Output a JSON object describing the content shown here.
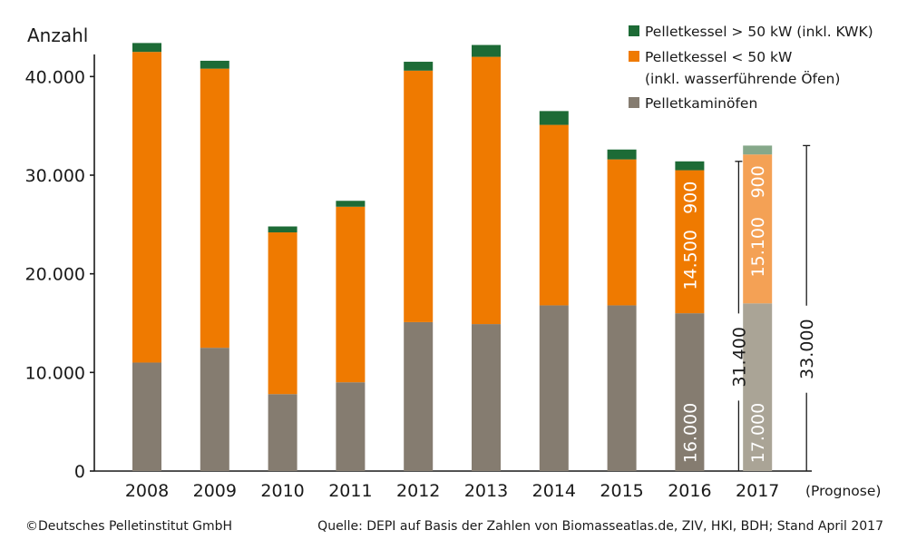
{
  "chart_data": {
    "type": "bar",
    "stacked": true,
    "ylabel": "Anzahl",
    "ylim": [
      0,
      45000
    ],
    "yticks": [
      0,
      10000,
      20000,
      30000,
      40000
    ],
    "ytick_labels": [
      "0",
      "10.000",
      "20.000",
      "30.000",
      "40.000"
    ],
    "grid": false,
    "legend_position": "top-right",
    "categories": [
      "2008",
      "2009",
      "2010",
      "2011",
      "2012",
      "2013",
      "2014",
      "2015",
      "2016",
      "2017"
    ],
    "category_note": "(Prognose)",
    "series": [
      {
        "name": "Pelletkaminöfen",
        "color": "#857c70",
        "forecast_color": "#aaa496",
        "values": [
          11000,
          12500,
          7800,
          9000,
          15100,
          14900,
          16800,
          16800,
          16000,
          17000
        ]
      },
      {
        "name": "Pelletkessel < 50 kW",
        "name_line2": "(inkl. wasserführende Öfen)",
        "color": "#ef7a00",
        "forecast_color": "#f4a155",
        "values": [
          31500,
          28300,
          16400,
          17800,
          25500,
          27100,
          18300,
          14800,
          14500,
          15100
        ]
      },
      {
        "name": "Pelletkessel > 50 kW (inkl. KWK)",
        "color": "#1d6b36",
        "forecast_color": "#86a88a",
        "values": [
          900,
          800,
          600,
          600,
          900,
          1200,
          1400,
          1000,
          900,
          900
        ]
      }
    ],
    "bar_value_labels": {
      "2016": [
        "16.000",
        "14.500",
        "900"
      ],
      "2017": [
        "17.000",
        "15.100",
        "900"
      ]
    },
    "total_annotations": [
      {
        "category": "2016",
        "value": 31400,
        "label": "31.400"
      },
      {
        "category": "2017",
        "value": 33000,
        "label": "33.000"
      }
    ]
  },
  "footer": {
    "copyright": "©Deutsches Pelletinstitut GmbH",
    "source": "Quelle: DEPI auf Basis der Zahlen von Biomasseatlas.de, ZIV, HKI, BDH; Stand April 2017"
  }
}
